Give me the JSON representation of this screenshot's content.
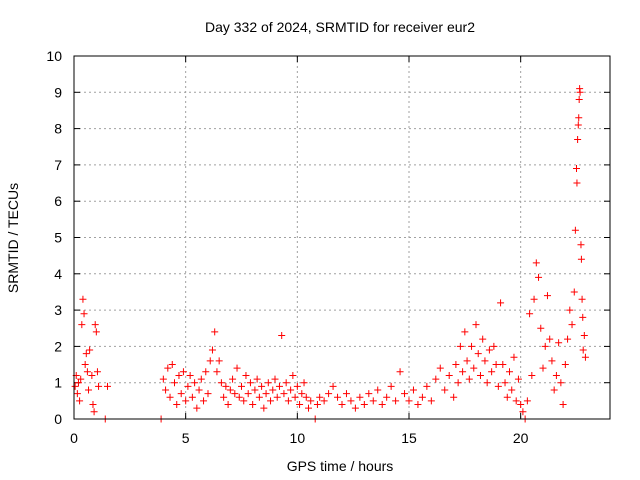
{
  "chart_data": {
    "type": "scatter",
    "title": "Day 332 of 2024, SRMTID for receiver eur2",
    "xlabel": "GPS time / hours",
    "ylabel": "SRMTID / TECUs",
    "xlim": [
      0,
      24
    ],
    "ylim": [
      0,
      10
    ],
    "x_ticks": [
      "0",
      "5",
      "10",
      "15",
      "20"
    ],
    "y_ticks": [
      "0",
      "1",
      "2",
      "3",
      "4",
      "5",
      "6",
      "7",
      "8",
      "9",
      "10"
    ],
    "marker": "+",
    "color": "#ff0000",
    "grid": true,
    "series": [
      {
        "name": "SRMTID",
        "points": [
          [
            0.05,
            0.9
          ],
          [
            0.1,
            1.2
          ],
          [
            0.15,
            0.7
          ],
          [
            0.2,
            1.0
          ],
          [
            0.25,
            0.5
          ],
          [
            0.3,
            1.1
          ],
          [
            0.35,
            2.6
          ],
          [
            0.4,
            3.3
          ],
          [
            0.45,
            2.9
          ],
          [
            0.5,
            1.5
          ],
          [
            0.55,
            1.8
          ],
          [
            0.6,
            1.3
          ],
          [
            0.65,
            0.8
          ],
          [
            0.7,
            1.9
          ],
          [
            0.8,
            1.2
          ],
          [
            0.85,
            0.4
          ],
          [
            0.9,
            0.2
          ],
          [
            0.95,
            2.6
          ],
          [
            1.0,
            2.4
          ],
          [
            1.05,
            1.3
          ],
          [
            1.1,
            0.9
          ],
          [
            1.4,
            0.0
          ],
          [
            1.5,
            0.9
          ],
          [
            3.9,
            0.0
          ],
          [
            4.0,
            1.1
          ],
          [
            4.1,
            0.8
          ],
          [
            4.2,
            1.4
          ],
          [
            4.3,
            0.6
          ],
          [
            4.4,
            1.5
          ],
          [
            4.5,
            1.0
          ],
          [
            4.6,
            0.4
          ],
          [
            4.7,
            1.2
          ],
          [
            4.8,
            0.7
          ],
          [
            4.9,
            1.3
          ],
          [
            5.0,
            0.5
          ],
          [
            5.1,
            0.9
          ],
          [
            5.2,
            1.2
          ],
          [
            5.3,
            0.6
          ],
          [
            5.4,
            1.0
          ],
          [
            5.5,
            0.3
          ],
          [
            5.6,
            0.8
          ],
          [
            5.7,
            1.1
          ],
          [
            5.8,
            0.5
          ],
          [
            5.9,
            1.3
          ],
          [
            6.0,
            0.7
          ],
          [
            6.1,
            1.6
          ],
          [
            6.2,
            1.9
          ],
          [
            6.3,
            2.4
          ],
          [
            6.4,
            1.3
          ],
          [
            6.5,
            1.6
          ],
          [
            6.6,
            1.0
          ],
          [
            6.7,
            0.6
          ],
          [
            6.8,
            0.9
          ],
          [
            6.9,
            0.4
          ],
          [
            7.0,
            0.8
          ],
          [
            7.1,
            1.1
          ],
          [
            7.2,
            0.7
          ],
          [
            7.3,
            1.4
          ],
          [
            7.4,
            0.6
          ],
          [
            7.5,
            0.9
          ],
          [
            7.6,
            0.5
          ],
          [
            7.7,
            1.2
          ],
          [
            7.8,
            0.7
          ],
          [
            7.9,
            1.0
          ],
          [
            8.0,
            0.4
          ],
          [
            8.1,
            0.8
          ],
          [
            8.2,
            1.1
          ],
          [
            8.3,
            0.6
          ],
          [
            8.4,
            0.9
          ],
          [
            8.5,
            0.3
          ],
          [
            8.6,
            0.7
          ],
          [
            8.7,
            1.0
          ],
          [
            8.8,
            0.5
          ],
          [
            8.9,
            0.8
          ],
          [
            9.0,
            1.1
          ],
          [
            9.1,
            0.6
          ],
          [
            9.2,
            0.9
          ],
          [
            9.3,
            2.3
          ],
          [
            9.4,
            0.7
          ],
          [
            9.5,
            1.0
          ],
          [
            9.6,
            0.5
          ],
          [
            9.7,
            0.8
          ],
          [
            9.8,
            1.2
          ],
          [
            9.9,
            0.6
          ],
          [
            10.0,
            0.9
          ],
          [
            10.1,
            0.4
          ],
          [
            10.2,
            0.7
          ],
          [
            10.3,
            1.0
          ],
          [
            10.4,
            0.6
          ],
          [
            10.5,
            0.3
          ],
          [
            10.6,
            0.5
          ],
          [
            10.8,
            0.0
          ],
          [
            10.9,
            0.4
          ],
          [
            11.0,
            0.6
          ],
          [
            11.2,
            0.5
          ],
          [
            11.4,
            0.7
          ],
          [
            11.6,
            0.9
          ],
          [
            11.8,
            0.6
          ],
          [
            12.0,
            0.4
          ],
          [
            12.2,
            0.7
          ],
          [
            12.4,
            0.5
          ],
          [
            12.6,
            0.3
          ],
          [
            12.8,
            0.6
          ],
          [
            13.0,
            0.4
          ],
          [
            13.2,
            0.7
          ],
          [
            13.4,
            0.5
          ],
          [
            13.6,
            0.8
          ],
          [
            13.8,
            0.4
          ],
          [
            14.0,
            0.6
          ],
          [
            14.2,
            0.9
          ],
          [
            14.4,
            0.5
          ],
          [
            14.6,
            1.3
          ],
          [
            14.8,
            0.7
          ],
          [
            15.0,
            0.5
          ],
          [
            15.2,
            0.8
          ],
          [
            15.4,
            0.4
          ],
          [
            15.6,
            0.6
          ],
          [
            15.8,
            0.9
          ],
          [
            16.0,
            0.5
          ],
          [
            16.2,
            1.1
          ],
          [
            16.4,
            1.4
          ],
          [
            16.6,
            0.8
          ],
          [
            16.8,
            1.2
          ],
          [
            17.0,
            0.6
          ],
          [
            17.1,
            1.5
          ],
          [
            17.2,
            1.0
          ],
          [
            17.3,
            2.0
          ],
          [
            17.4,
            1.3
          ],
          [
            17.5,
            2.4
          ],
          [
            17.6,
            1.6
          ],
          [
            17.7,
            1.1
          ],
          [
            17.8,
            2.0
          ],
          [
            17.9,
            1.4
          ],
          [
            18.0,
            2.6
          ],
          [
            18.1,
            1.8
          ],
          [
            18.2,
            1.2
          ],
          [
            18.3,
            2.2
          ],
          [
            18.4,
            1.6
          ],
          [
            18.5,
            1.0
          ],
          [
            18.6,
            1.9
          ],
          [
            18.7,
            1.3
          ],
          [
            18.8,
            2.0
          ],
          [
            18.9,
            1.5
          ],
          [
            19.0,
            0.9
          ],
          [
            19.1,
            3.2
          ],
          [
            19.2,
            1.5
          ],
          [
            19.3,
            1.0
          ],
          [
            19.4,
            0.6
          ],
          [
            19.5,
            1.3
          ],
          [
            19.6,
            0.8
          ],
          [
            19.7,
            1.7
          ],
          [
            19.8,
            0.5
          ],
          [
            19.9,
            1.1
          ],
          [
            20.0,
            0.4
          ],
          [
            20.1,
            0.2
          ],
          [
            20.2,
            0.0
          ],
          [
            20.3,
            0.5
          ],
          [
            20.4,
            2.9
          ],
          [
            20.5,
            1.2
          ],
          [
            20.6,
            3.3
          ],
          [
            20.7,
            4.3
          ],
          [
            20.8,
            3.9
          ],
          [
            20.9,
            2.5
          ],
          [
            21.0,
            1.4
          ],
          [
            21.1,
            2.0
          ],
          [
            21.2,
            3.4
          ],
          [
            21.3,
            2.2
          ],
          [
            21.4,
            1.6
          ],
          [
            21.5,
            0.8
          ],
          [
            21.6,
            1.2
          ],
          [
            21.7,
            2.1
          ],
          [
            21.8,
            1.0
          ],
          [
            21.9,
            0.4
          ],
          [
            22.0,
            1.5
          ],
          [
            22.1,
            2.2
          ],
          [
            22.2,
            3.0
          ],
          [
            22.3,
            2.6
          ],
          [
            22.4,
            3.5
          ],
          [
            22.45,
            5.2
          ],
          [
            22.5,
            6.9
          ],
          [
            22.52,
            6.5
          ],
          [
            22.55,
            7.7
          ],
          [
            22.58,
            8.1
          ],
          [
            22.6,
            8.3
          ],
          [
            22.62,
            8.8
          ],
          [
            22.64,
            9.1
          ],
          [
            22.66,
            9.0
          ],
          [
            22.7,
            4.8
          ],
          [
            22.72,
            4.4
          ],
          [
            22.75,
            3.3
          ],
          [
            22.78,
            2.8
          ],
          [
            22.8,
            1.9
          ],
          [
            22.85,
            2.3
          ],
          [
            22.9,
            1.7
          ]
        ]
      }
    ]
  }
}
